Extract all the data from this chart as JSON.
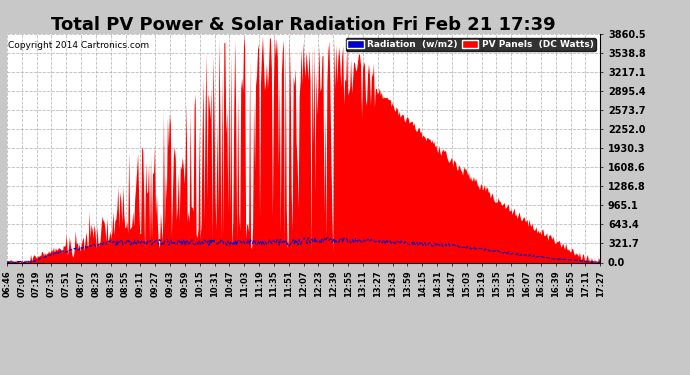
{
  "title": "Total PV Power & Solar Radiation Fri Feb 21 17:39",
  "copyright": "Copyright 2014 Cartronics.com",
  "ymax": 3860.5,
  "yticks": [
    0.0,
    321.7,
    643.4,
    965.1,
    1286.8,
    1608.6,
    1930.3,
    2252.0,
    2573.7,
    2895.4,
    3217.1,
    3538.8,
    3860.5
  ],
  "figure_bg_color": "#c8c8c8",
  "plot_bg_color": "#ffffff",
  "grid_color": "#aaaaaa",
  "pv_color": "#ff0000",
  "radiation_color": "#0000cc",
  "legend_radiation_bg": "#0000cc",
  "legend_pv_bg": "#ff0000",
  "title_fontsize": 13,
  "n_points": 600,
  "time_labels": [
    "06:46",
    "07:03",
    "07:19",
    "07:35",
    "07:51",
    "08:07",
    "08:23",
    "08:39",
    "08:55",
    "09:11",
    "09:27",
    "09:43",
    "09:59",
    "10:15",
    "10:31",
    "10:47",
    "11:03",
    "11:19",
    "11:35",
    "11:51",
    "12:07",
    "12:23",
    "12:39",
    "12:55",
    "13:11",
    "13:27",
    "13:43",
    "13:59",
    "14:15",
    "14:31",
    "14:47",
    "15:03",
    "15:19",
    "15:35",
    "15:51",
    "16:07",
    "16:23",
    "16:39",
    "16:55",
    "17:11",
    "17:27"
  ]
}
